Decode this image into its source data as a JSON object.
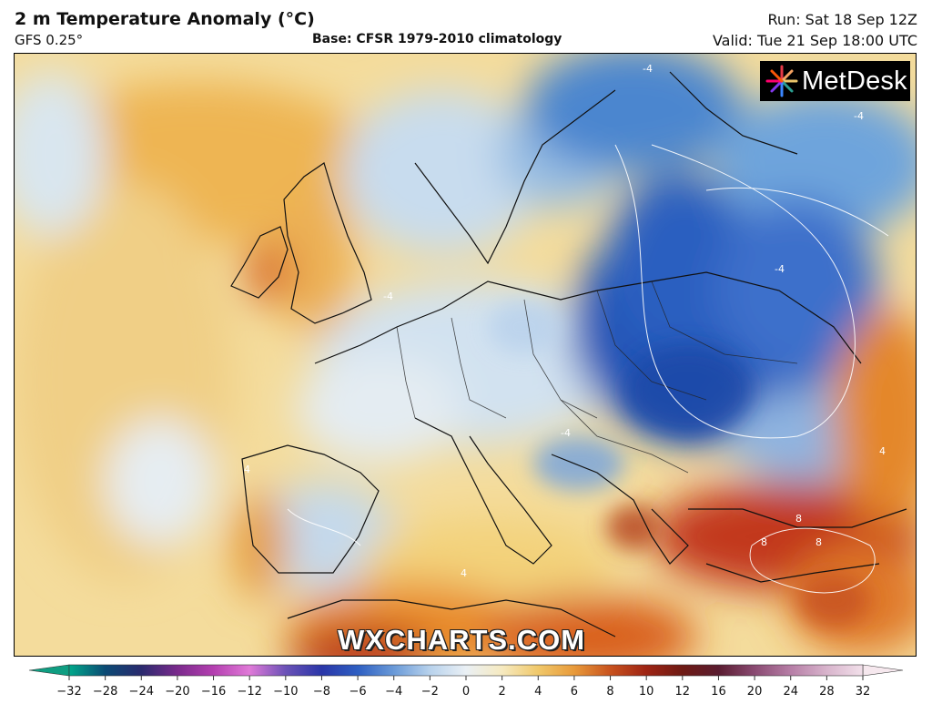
{
  "header": {
    "title": "2 m Temperature Anomaly (°C)",
    "model": "GFS 0.25°",
    "base": "Base: CFSR 1979-2010 climatology",
    "run": "Run: Sat 18 Sep 12Z",
    "valid": "Valid: Tue 21 Sep 18:00 UTC"
  },
  "logo": {
    "text": "MetDesk"
  },
  "watermark": "WXCHARTS.COM",
  "map": {
    "contour_labels": [
      "-4",
      "-4",
      "-4",
      "-4",
      "-4",
      "4",
      "4",
      "8",
      "8",
      "8",
      "4"
    ]
  },
  "colorbar": {
    "ticks": [
      "−32",
      "−28",
      "−24",
      "−20",
      "−16",
      "−12",
      "−10",
      "−8",
      "−6",
      "−4",
      "−2",
      "0",
      "2",
      "4",
      "6",
      "8",
      "10",
      "12",
      "16",
      "20",
      "24",
      "28",
      "32"
    ],
    "colors": [
      "#00a88a",
      "#0b4a74",
      "#2a2a6e",
      "#7a2a8c",
      "#b43fb0",
      "#e07ad8",
      "#6b52b7",
      "#2a36a8",
      "#2e5fc2",
      "#6a9ad8",
      "#b8d2ec",
      "#eaf0f5",
      "#f6eac0",
      "#f0c86a",
      "#e89a3a",
      "#c8521e",
      "#9e2414",
      "#6e1a14",
      "#5a1c30",
      "#8a4a72",
      "#b67ea6",
      "#d8b4cc",
      "#f2e0ea"
    ]
  }
}
